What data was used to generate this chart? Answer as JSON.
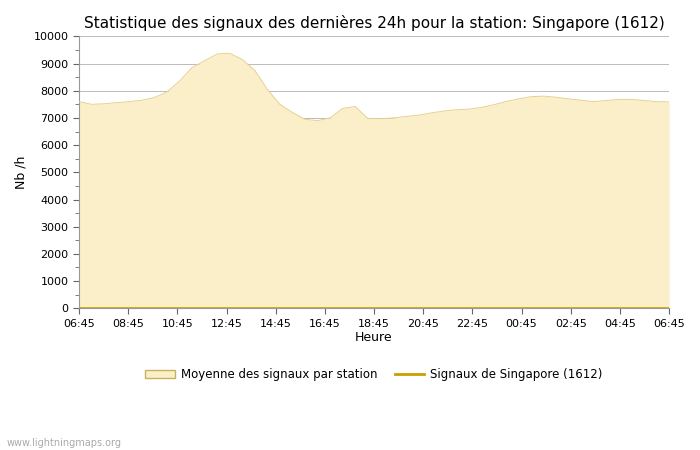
{
  "title": "Statistique des signaux des dernières 24h pour la station: Singapore (1612)",
  "xlabel": "Heure",
  "ylabel": "Nb /h",
  "watermark": "www.lightningmaps.org",
  "ylim": [
    0,
    10000
  ],
  "yticks": [
    0,
    1000,
    2000,
    3000,
    4000,
    5000,
    6000,
    7000,
    8000,
    9000,
    10000
  ],
  "xtick_labels": [
    "06:45",
    "08:45",
    "10:45",
    "12:45",
    "14:45",
    "16:45",
    "18:45",
    "20:45",
    "22:45",
    "00:45",
    "02:45",
    "04:45",
    "06:45"
  ],
  "fill_color": "#faefc8",
  "fill_edge_color": "#e8d090",
  "line_color": "#c8a000",
  "background_color": "#ffffff",
  "grid_color": "#bbbbbb",
  "title_fontsize": 11,
  "axis_fontsize": 9,
  "tick_fontsize": 8,
  "legend_label_fill": "Moyenne des signaux par station",
  "legend_label_line": "Signaux de Singapore (1612)",
  "mean_data": [
    7600,
    7500,
    7520,
    7560,
    7600,
    7650,
    7750,
    7950,
    8350,
    8850,
    9100,
    9350,
    9380,
    9150,
    8750,
    8050,
    7500,
    7200,
    6950,
    6900,
    7000,
    7350,
    7420,
    6980,
    6970,
    7000,
    7050,
    7100,
    7180,
    7250,
    7300,
    7320,
    7380,
    7480,
    7600,
    7700,
    7780,
    7800,
    7760,
    7700,
    7650,
    7600,
    7640,
    7680,
    7680,
    7640,
    7600,
    7590
  ],
  "signal_data": [
    20,
    20,
    20,
    20,
    20,
    20,
    20,
    20,
    20,
    20,
    20,
    20,
    20,
    20,
    20,
    20,
    20,
    20,
    20,
    20,
    20,
    20,
    20,
    20,
    20,
    20,
    20,
    20,
    20,
    20,
    20,
    20,
    20,
    20,
    20,
    20,
    20,
    20,
    20,
    20,
    20,
    20,
    20,
    20,
    20,
    20,
    20,
    20
  ],
  "n_points": 48
}
